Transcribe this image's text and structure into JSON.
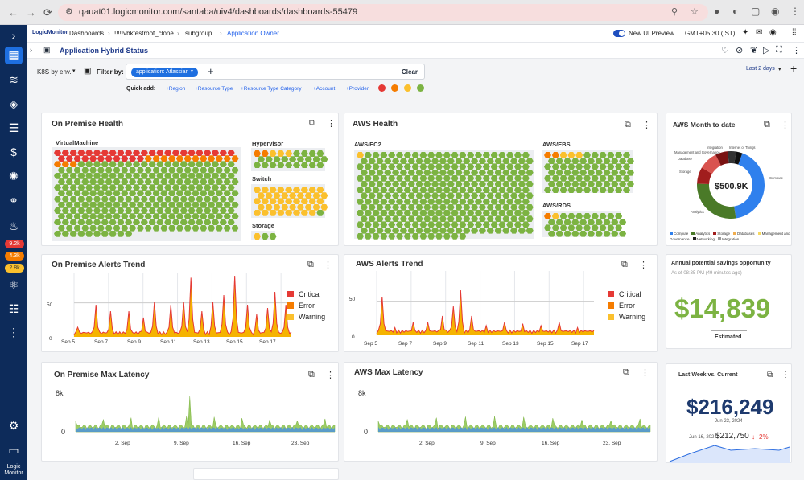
{
  "browser": {
    "url": "qauat01.logicmonitor.com/santaba/uiv4/dashboards/dashboards-55479"
  },
  "sidebar": {
    "badges": [
      "9.2k",
      "4.3k",
      "2.8k"
    ],
    "logo_text": "Logic Monitor"
  },
  "topbar": {
    "logo": "LogicMonitor",
    "breadcrumbs": [
      "Dashboards",
      "!!!!!vbktestroot_clone",
      "subgroup",
      "Application Owner"
    ],
    "new_ui_preview": "New UI Preview",
    "timezone": "GMT+05:30 (IST)"
  },
  "dashboard": {
    "title": "Application Hybrid Status"
  },
  "filters": {
    "group_by": "K8S by env.",
    "filter_label": "Filter by:",
    "chip": "application: Atlassian",
    "clear": "Clear",
    "time_range": "Last 2 days",
    "quick_add_label": "Quick add:",
    "quick_add": [
      "+Region",
      "+Resource Type",
      "+Resource Type Category",
      "+Account",
      "+Provider"
    ],
    "status_colors": [
      "#e53935",
      "#f57c00",
      "#fbc02d",
      "#7cb342"
    ]
  },
  "health": {
    "on_prem_title": "On Premise Health",
    "aws_title": "AWS Health",
    "groups": {
      "virtual_machine": "VirtualMachine",
      "hypervisor": "Hypervisor",
      "switch": "Switch",
      "storage": "Storage",
      "aws_ec2": "AWS/EC2",
      "aws_ebs": "AWS/EBS",
      "aws_rds": "AWS/RDS"
    },
    "colors": {
      "critical": "#e53935",
      "error": "#f57c00",
      "warning": "#fbc02d",
      "ok": "#7cb342"
    }
  },
  "aws_month": {
    "title": "AWS Month to date",
    "total": "$500.9K",
    "slice_labels": [
      "Integration",
      "Internet of Things",
      "Management and Governance",
      "Database",
      "Storage",
      "Analytics",
      "Compute"
    ],
    "legend": [
      "Compute",
      "Analytics",
      "Storage",
      "Databases",
      "Management and Governance",
      "Networking",
      "Integration"
    ],
    "chart_data": {
      "type": "pie",
      "categories": [
        "Compute",
        "Analytics",
        "Storage",
        "Database",
        "Management and Governance",
        "Integration",
        "Internet of Things"
      ],
      "values": [
        42,
        28,
        8,
        9,
        6,
        4,
        3
      ],
      "colors": [
        "#2f80ed",
        "#4a7a28",
        "#a11d1d",
        "#d9534f",
        "#7a1212",
        "#333333",
        "#111111"
      ]
    }
  },
  "alerts": {
    "on_prem_title": "On Premise Alerts Trend",
    "aws_title": "AWS Alerts Trend",
    "legend": [
      "Critical",
      "Error",
      "Warning"
    ],
    "legend_colors": [
      "#e53935",
      "#f57c00",
      "#fbc02d"
    ],
    "on_prem_ticks": [
      "Sep 5",
      "Sep 7",
      "Sep 9",
      "Sep 11",
      "Sep 13",
      "Sep 15",
      "Sep 17"
    ],
    "aws_ticks": [
      "Sep 5",
      "Sep 7",
      "Sep 9",
      "Sep 11",
      "Sep 13",
      "Sep 15",
      "Sep 17"
    ],
    "y_ticks": [
      "50",
      "0"
    ]
  },
  "savings": {
    "title": "Annual potential savings opportunity",
    "asof": "As of 08:35 PM  (49 minutes ago)",
    "value": "$14,839",
    "label": "Estimated"
  },
  "latency": {
    "on_prem_title": "On Premise Max Latency",
    "aws_title": "AWS Max Latency",
    "y_ticks": [
      "8k",
      "0"
    ],
    "ticks": [
      "2. Sep",
      "9. Sep",
      "16. Sep",
      "23. Sep"
    ]
  },
  "last_week": {
    "title": "Last Week vs. Current",
    "value": "$216,249",
    "date": "Jun 23, 2024",
    "prev_date": "Jun 16, 2024",
    "prev_value": "$212,750",
    "change": "2%"
  }
}
